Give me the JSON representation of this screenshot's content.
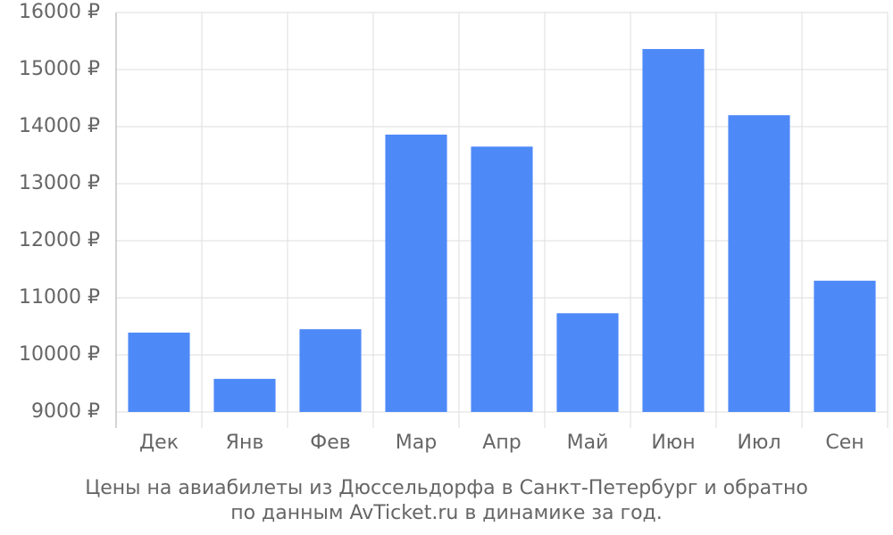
{
  "chart_data": {
    "type": "bar",
    "caption": [
      "Цены на авиабилеты из Дюссельдорфа в Санкт-Петербург и обратно",
      "по данным AvTicket.ru в динамике за год."
    ],
    "categories": [
      "Дек",
      "Янв",
      "Фев",
      "Мар",
      "Апр",
      "Май",
      "Июн",
      "Июл",
      "Сен"
    ],
    "values": [
      10390,
      9580,
      10450,
      13860,
      13650,
      10730,
      15360,
      14200,
      11300
    ],
    "color": "#4e89f8",
    "ylim": [
      9000,
      16000
    ],
    "yticks": [
      {
        "value": 9000,
        "label": "9000 ₽"
      },
      {
        "value": 10000,
        "label": "10000 ₽"
      },
      {
        "value": 11000,
        "label": "11000 ₽"
      },
      {
        "value": 12000,
        "label": "12000 ₽"
      },
      {
        "value": 13000,
        "label": "13000 ₽"
      },
      {
        "value": 14000,
        "label": "14000 ₽"
      },
      {
        "value": 15000,
        "label": "15000 ₽"
      },
      {
        "value": 16000,
        "label": "16000 ₽"
      }
    ],
    "grid": true
  }
}
